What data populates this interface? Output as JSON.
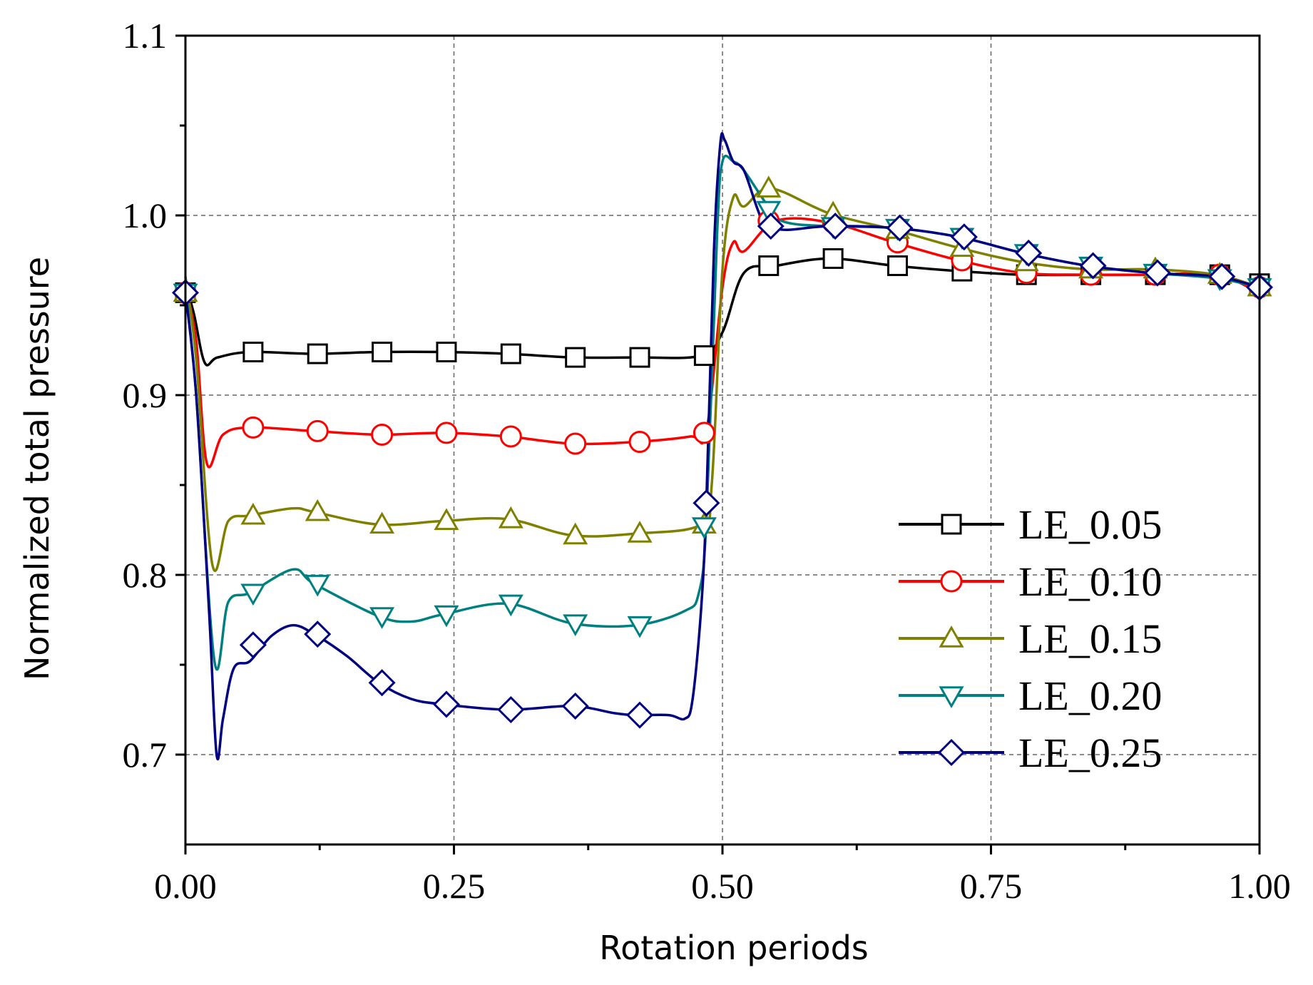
{
  "chart_data": {
    "type": "line",
    "title": "",
    "xlabel": "Rotation periods",
    "ylabel": "Normalized total pressure",
    "xlim": [
      0,
      1.0
    ],
    "ylim": [
      0.65,
      1.1
    ],
    "xticks": [
      0,
      0.25,
      0.5,
      0.75,
      1.0
    ],
    "xtick_labels": [
      "0.00",
      "0.25",
      "0.50",
      "0.75",
      "1.00"
    ],
    "yticks": [
      0.7,
      0.8,
      0.9,
      1.0,
      1.1
    ],
    "ytick_labels": [
      "0.7",
      "0.8",
      "0.9",
      "1.0",
      "1.1"
    ],
    "grid": true,
    "legend_position": "lower-right",
    "series": [
      {
        "name": "LE_0.05",
        "color": "#000000",
        "marker": "square",
        "line": [
          [
            0,
            0.962
          ],
          [
            0.008,
            0.945
          ],
          [
            0.018,
            0.918
          ],
          [
            0.03,
            0.921
          ],
          [
            0.06,
            0.924
          ],
          [
            0.12,
            0.923
          ],
          [
            0.18,
            0.924
          ],
          [
            0.24,
            0.924
          ],
          [
            0.3,
            0.923
          ],
          [
            0.36,
            0.921
          ],
          [
            0.42,
            0.921
          ],
          [
            0.48,
            0.922
          ],
          [
            0.5,
            0.935
          ],
          [
            0.52,
            0.968
          ],
          [
            0.55,
            0.972
          ],
          [
            0.6,
            0.976
          ],
          [
            0.66,
            0.972
          ],
          [
            0.72,
            0.969
          ],
          [
            0.78,
            0.967
          ],
          [
            0.84,
            0.967
          ],
          [
            0.9,
            0.967
          ],
          [
            0.96,
            0.967
          ],
          [
            1.0,
            0.957
          ]
        ],
        "markers": [
          [
            0,
            0.957
          ],
          [
            0.063,
            0.924
          ],
          [
            0.123,
            0.923
          ],
          [
            0.183,
            0.924
          ],
          [
            0.243,
            0.924
          ],
          [
            0.303,
            0.923
          ],
          [
            0.363,
            0.921
          ],
          [
            0.423,
            0.921
          ],
          [
            0.483,
            0.922
          ],
          [
            0.543,
            0.972
          ],
          [
            0.603,
            0.976
          ],
          [
            0.663,
            0.972
          ],
          [
            0.723,
            0.969
          ],
          [
            0.783,
            0.967
          ],
          [
            0.843,
            0.967
          ],
          [
            0.903,
            0.967
          ],
          [
            0.963,
            0.967
          ],
          [
            1.0,
            0.962
          ]
        ]
      },
      {
        "name": "LE_0.10",
        "color": "#ff0000",
        "marker": "circle",
        "line": [
          [
            0,
            0.96
          ],
          [
            0.01,
            0.93
          ],
          [
            0.02,
            0.862
          ],
          [
            0.035,
            0.878
          ],
          [
            0.06,
            0.882
          ],
          [
            0.12,
            0.88
          ],
          [
            0.18,
            0.878
          ],
          [
            0.24,
            0.879
          ],
          [
            0.3,
            0.877
          ],
          [
            0.36,
            0.873
          ],
          [
            0.42,
            0.874
          ],
          [
            0.47,
            0.877
          ],
          [
            0.485,
            0.88
          ],
          [
            0.5,
            0.96
          ],
          [
            0.51,
            0.985
          ],
          [
            0.52,
            0.98
          ],
          [
            0.55,
            0.997
          ],
          [
            0.6,
            0.996
          ],
          [
            0.66,
            0.985
          ],
          [
            0.72,
            0.975
          ],
          [
            0.78,
            0.968
          ],
          [
            0.84,
            0.967
          ],
          [
            0.9,
            0.967
          ],
          [
            0.96,
            0.967
          ],
          [
            1.0,
            0.957
          ]
        ],
        "markers": [
          [
            0,
            0.957
          ],
          [
            0.063,
            0.882
          ],
          [
            0.123,
            0.88
          ],
          [
            0.183,
            0.878
          ],
          [
            0.243,
            0.879
          ],
          [
            0.303,
            0.877
          ],
          [
            0.363,
            0.873
          ],
          [
            0.423,
            0.874
          ],
          [
            0.483,
            0.879
          ],
          [
            0.543,
            0.997
          ],
          [
            0.603,
            0.996
          ],
          [
            0.663,
            0.985
          ],
          [
            0.723,
            0.975
          ],
          [
            0.783,
            0.968
          ],
          [
            0.843,
            0.967
          ],
          [
            0.903,
            0.967
          ],
          [
            0.963,
            0.967
          ],
          [
            1.0,
            0.96
          ]
        ]
      },
      {
        "name": "LE_0.15",
        "color": "#808000",
        "marker": "triangle-up",
        "line": [
          [
            0,
            0.966
          ],
          [
            0.01,
            0.92
          ],
          [
            0.025,
            0.806
          ],
          [
            0.04,
            0.83
          ],
          [
            0.06,
            0.833
          ],
          [
            0.1,
            0.837
          ],
          [
            0.12,
            0.835
          ],
          [
            0.18,
            0.828
          ],
          [
            0.24,
            0.83
          ],
          [
            0.3,
            0.831
          ],
          [
            0.36,
            0.822
          ],
          [
            0.42,
            0.823
          ],
          [
            0.48,
            0.828
          ],
          [
            0.49,
            0.85
          ],
          [
            0.5,
            0.97
          ],
          [
            0.51,
            1.01
          ],
          [
            0.52,
            1.005
          ],
          [
            0.545,
            1.015
          ],
          [
            0.6,
            1.001
          ],
          [
            0.66,
            0.992
          ],
          [
            0.72,
            0.982
          ],
          [
            0.78,
            0.974
          ],
          [
            0.84,
            0.97
          ],
          [
            0.9,
            0.97
          ],
          [
            0.96,
            0.967
          ],
          [
            1.0,
            0.96
          ]
        ],
        "markers": [
          [
            0,
            0.957
          ],
          [
            0.063,
            0.833
          ],
          [
            0.123,
            0.835
          ],
          [
            0.183,
            0.828
          ],
          [
            0.243,
            0.83
          ],
          [
            0.303,
            0.831
          ],
          [
            0.363,
            0.822
          ],
          [
            0.423,
            0.823
          ],
          [
            0.483,
            0.828
          ],
          [
            0.543,
            1.015
          ],
          [
            0.603,
            1.001
          ],
          [
            0.663,
            0.992
          ],
          [
            0.723,
            0.982
          ],
          [
            0.783,
            0.974
          ],
          [
            0.843,
            0.97
          ],
          [
            0.903,
            0.97
          ],
          [
            0.963,
            0.967
          ],
          [
            1.0,
            0.96
          ]
        ]
      },
      {
        "name": "LE_0.20",
        "color": "#008080",
        "marker": "triangle-down",
        "line": [
          [
            0,
            0.96
          ],
          [
            0.01,
            0.9
          ],
          [
            0.027,
            0.752
          ],
          [
            0.04,
            0.785
          ],
          [
            0.06,
            0.79
          ],
          [
            0.1,
            0.803
          ],
          [
            0.12,
            0.795
          ],
          [
            0.18,
            0.777
          ],
          [
            0.21,
            0.774
          ],
          [
            0.24,
            0.778
          ],
          [
            0.3,
            0.784
          ],
          [
            0.36,
            0.773
          ],
          [
            0.42,
            0.772
          ],
          [
            0.465,
            0.78
          ],
          [
            0.478,
            0.79
          ],
          [
            0.485,
            0.83
          ],
          [
            0.495,
            0.99
          ],
          [
            0.5,
            1.03
          ],
          [
            0.51,
            1.03
          ],
          [
            0.52,
            1.025
          ],
          [
            0.545,
            1.003
          ],
          [
            0.56,
            0.996
          ],
          [
            0.6,
            0.994
          ],
          [
            0.66,
            0.993
          ],
          [
            0.72,
            0.988
          ],
          [
            0.78,
            0.979
          ],
          [
            0.84,
            0.972
          ],
          [
            0.9,
            0.968
          ],
          [
            0.96,
            0.965
          ],
          [
            1.0,
            0.96
          ]
        ],
        "markers": [
          [
            0,
            0.957
          ],
          [
            0.063,
            0.79
          ],
          [
            0.123,
            0.795
          ],
          [
            0.183,
            0.777
          ],
          [
            0.243,
            0.778
          ],
          [
            0.303,
            0.784
          ],
          [
            0.363,
            0.773
          ],
          [
            0.423,
            0.772
          ],
          [
            0.483,
            0.827
          ],
          [
            0.543,
            1.003
          ],
          [
            0.603,
            0.994
          ],
          [
            0.663,
            0.993
          ],
          [
            0.723,
            0.988
          ],
          [
            0.783,
            0.979
          ],
          [
            0.843,
            0.972
          ],
          [
            0.903,
            0.968
          ],
          [
            0.963,
            0.965
          ],
          [
            1.0,
            0.96
          ]
        ]
      },
      {
        "name": "LE_0.25",
        "color": "#000080",
        "marker": "diamond",
        "line": [
          [
            0,
            0.957
          ],
          [
            0.01,
            0.9
          ],
          [
            0.022,
            0.78
          ],
          [
            0.029,
            0.7
          ],
          [
            0.035,
            0.72
          ],
          [
            0.045,
            0.748
          ],
          [
            0.06,
            0.752
          ],
          [
            0.08,
            0.766
          ],
          [
            0.1,
            0.772
          ],
          [
            0.12,
            0.767
          ],
          [
            0.15,
            0.755
          ],
          [
            0.18,
            0.74
          ],
          [
            0.21,
            0.731
          ],
          [
            0.24,
            0.728
          ],
          [
            0.3,
            0.725
          ],
          [
            0.36,
            0.727
          ],
          [
            0.4,
            0.723
          ],
          [
            0.42,
            0.722
          ],
          [
            0.45,
            0.722
          ],
          [
            0.465,
            0.72
          ],
          [
            0.472,
            0.73
          ],
          [
            0.48,
            0.78
          ],
          [
            0.485,
            0.84
          ],
          [
            0.492,
            0.98
          ],
          [
            0.498,
            1.04
          ],
          [
            0.502,
            1.042
          ],
          [
            0.51,
            1.03
          ],
          [
            0.52,
            1.025
          ],
          [
            0.535,
            1.0
          ],
          [
            0.545,
            0.994
          ],
          [
            0.56,
            0.992
          ],
          [
            0.6,
            0.994
          ],
          [
            0.66,
            0.993
          ],
          [
            0.72,
            0.988
          ],
          [
            0.78,
            0.979
          ],
          [
            0.84,
            0.972
          ],
          [
            0.9,
            0.968
          ],
          [
            0.96,
            0.966
          ],
          [
            1.0,
            0.96
          ]
        ],
        "markers": [
          [
            0,
            0.957
          ],
          [
            0.063,
            0.761
          ],
          [
            0.123,
            0.767
          ],
          [
            0.183,
            0.74
          ],
          [
            0.243,
            0.728
          ],
          [
            0.303,
            0.725
          ],
          [
            0.363,
            0.727
          ],
          [
            0.423,
            0.722
          ],
          [
            0.485,
            0.84
          ],
          [
            0.545,
            0.994
          ],
          [
            0.605,
            0.994
          ],
          [
            0.665,
            0.993
          ],
          [
            0.725,
            0.988
          ],
          [
            0.785,
            0.979
          ],
          [
            0.845,
            0.972
          ],
          [
            0.905,
            0.968
          ],
          [
            0.965,
            0.966
          ],
          [
            1.0,
            0.96
          ]
        ]
      }
    ]
  }
}
